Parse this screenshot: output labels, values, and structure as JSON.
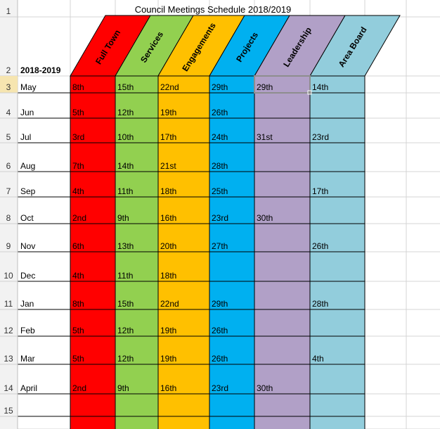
{
  "title": "Council Meetings Schedule 2018/2019",
  "year_label": "2018-2019",
  "row_numbers": [
    "1",
    "2",
    "3",
    "4",
    "5",
    "6",
    "7",
    "8",
    "9",
    "10",
    "11",
    "12",
    "13",
    "14",
    "15"
  ],
  "columns": [
    {
      "name": "Full Town",
      "color": "#ff0000"
    },
    {
      "name": "Services",
      "color": "#92d050"
    },
    {
      "name": "Engagements",
      "color": "#ffc000"
    },
    {
      "name": "Projects",
      "color": "#00b0f0"
    },
    {
      "name": "Leadership",
      "color": "#b1a0c7"
    },
    {
      "name": "Area Board",
      "color": "#92cddc"
    }
  ],
  "rows": [
    {
      "month": "May",
      "dates": [
        "8th",
        "15th",
        "22nd",
        "29th",
        "29th",
        "14th"
      ]
    },
    {
      "month": "Jun",
      "dates": [
        "5th",
        "12th",
        "19th",
        "26th",
        "",
        ""
      ]
    },
    {
      "month": "Jul",
      "dates": [
        "3rd",
        "10th",
        "17th",
        "24th",
        "31st",
        "23rd"
      ]
    },
    {
      "month": "Aug",
      "dates": [
        "7th",
        "14th",
        "21st",
        "28th",
        "",
        ""
      ]
    },
    {
      "month": "Sep",
      "dates": [
        "4th",
        "11th",
        "18th",
        "25th",
        "",
        "17th"
      ]
    },
    {
      "month": "Oct",
      "dates": [
        "2nd",
        "9th",
        "16th",
        "23rd",
        "30th",
        ""
      ]
    },
    {
      "month": "Nov",
      "dates": [
        "6th",
        "13th",
        "20th",
        "27th",
        "",
        "26th"
      ]
    },
    {
      "month": "Dec",
      "dates": [
        "4th",
        "11th",
        "18th",
        "",
        "",
        ""
      ]
    },
    {
      "month": "Jan",
      "dates": [
        "8th",
        "15th",
        "22nd",
        "29th",
        "",
        "28th"
      ]
    },
    {
      "month": "Feb",
      "dates": [
        "5th",
        "12th",
        "19th",
        "26th",
        "",
        ""
      ]
    },
    {
      "month": "Mar",
      "dates": [
        "5th",
        "12th",
        "19th",
        "26th",
        "",
        "4th"
      ]
    },
    {
      "month": "April",
      "dates": [
        "2nd",
        "9th",
        "16th",
        "23rd",
        "30th",
        ""
      ]
    }
  ],
  "selected_cell": {
    "row": 0,
    "col": 4
  },
  "colors": {
    "grid": "#d4d4d4",
    "header_bg": "#f2f2f2",
    "header_text": "#333333",
    "selection_bg": "#f6e5b0",
    "selection_border": "#8e8e8e"
  }
}
